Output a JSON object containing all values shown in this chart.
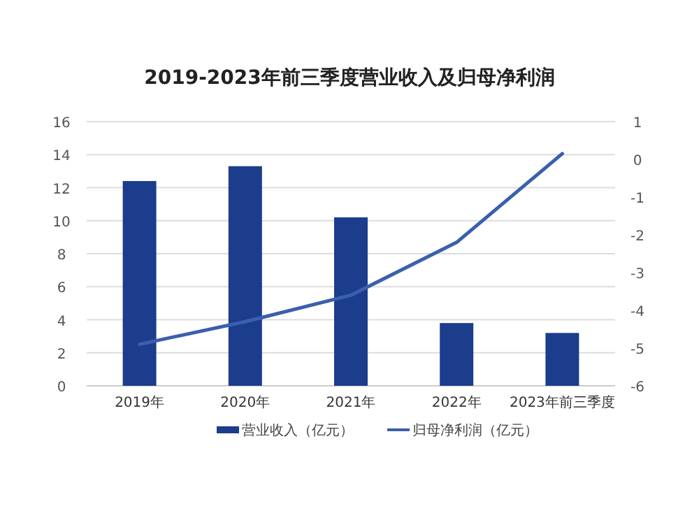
{
  "chart_data": {
    "type": "bar",
    "title": "2019-2023年前三季度营业收入及归母净利润",
    "categories": [
      "2019年",
      "2020年",
      "2021年",
      "2022年",
      "2023年前三季度"
    ],
    "series": [
      {
        "name": "营业收入（亿元）",
        "color": "#1c3c8c",
        "values": [
          12.4,
          13.3,
          10.2,
          3.8,
          3.2
        ]
      },
      {
        "name": "归母净利润（亿元）",
        "type": "line",
        "axis": "y2",
        "color": "#3b5fae",
        "values": [
          -4.9,
          -4.3,
          -3.6,
          -2.2,
          0.15
        ]
      }
    ],
    "ylim": [
      0,
      16
    ],
    "yticks": [
      0,
      2,
      4,
      6,
      8,
      10,
      12,
      14,
      16
    ],
    "y2lim": [
      -6,
      1
    ],
    "y2ticks": [
      -6,
      -5,
      -4,
      -3,
      -2,
      -1,
      0,
      1
    ],
    "grid": "y",
    "legend": "bottom"
  }
}
